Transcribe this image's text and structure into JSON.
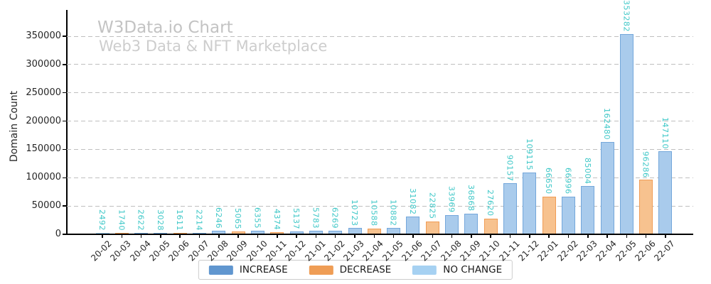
{
  "header": {
    "title": "W3Data.io Chart",
    "subtitle": "Web3 Data & NFT Marketplace"
  },
  "chart_data": {
    "type": "bar",
    "title": "W3Data.io Chart",
    "subtitle": "Web3 Data & NFT Marketplace",
    "xlabel": "",
    "ylabel": "Domain Count",
    "ylim": [
      0,
      390000
    ],
    "yticks": [
      0,
      50000,
      100000,
      150000,
      200000,
      250000,
      300000,
      350000
    ],
    "grid": "horizontal dashed",
    "legend_position": "bottom-center",
    "bar_value_label_rotation": "vertical",
    "categories": [
      "20-02",
      "20-03",
      "20-04",
      "20-05",
      "20-06",
      "20-07",
      "20-08",
      "20-09",
      "20-10",
      "20-11",
      "20-12",
      "21-01",
      "21-02",
      "21-03",
      "21-04",
      "21-05",
      "21-06",
      "21-07",
      "21-08",
      "21-09",
      "21-10",
      "21-11",
      "21-12",
      "22-01",
      "22-02",
      "22-03",
      "22-04",
      "22-05",
      "22-06",
      "22-07"
    ],
    "values": [
      2492,
      1740,
      2622,
      3028,
      1611,
      2214,
      6246,
      5065,
      6355,
      4374,
      5137,
      5783,
      6269,
      10723,
      10588,
      10882,
      31082,
      22825,
      33969,
      36868,
      27620,
      90157,
      109115,
      66650,
      66996,
      85004,
      162480,
      353282,
      96286,
      147110
    ],
    "statuses": [
      "NO CHANGE",
      "DECREASE",
      "INCREASE",
      "INCREASE",
      "DECREASE",
      "INCREASE",
      "INCREASE",
      "DECREASE",
      "INCREASE",
      "DECREASE",
      "INCREASE",
      "INCREASE",
      "INCREASE",
      "INCREASE",
      "DECREASE",
      "INCREASE",
      "INCREASE",
      "DECREASE",
      "INCREASE",
      "INCREASE",
      "DECREASE",
      "INCREASE",
      "INCREASE",
      "DECREASE",
      "INCREASE",
      "INCREASE",
      "INCREASE",
      "INCREASE",
      "DECREASE",
      "INCREASE"
    ],
    "legend": [
      {
        "label": "INCREASE",
        "key": "increase"
      },
      {
        "label": "DECREASE",
        "key": "decrease"
      },
      {
        "label": "NO CHANGE",
        "key": "nochange"
      }
    ]
  },
  "colors": {
    "increase_fill": "#a9cbec",
    "increase_edge": "#74a7db",
    "increase_legend": "#6096cf",
    "decrease_fill": "#f7c28f",
    "decrease_edge": "#f09c55",
    "decrease_legend": "#ef9d55",
    "nochange_fill": "#b9ddf7",
    "nochange_edge": "#9cccf0",
    "nochange_legend": "#a6d1f2",
    "value_label": "#40c8c8",
    "title": "#c3c3c3",
    "subtitle": "#cdcdcd",
    "grid": "#bfbfbf",
    "axis": "#000000"
  }
}
